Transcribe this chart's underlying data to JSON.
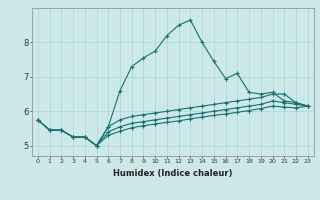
{
  "xlabel": "Humidex (Indice chaleur)",
  "ylabel": "",
  "bg_color": "#cce8e8",
  "line_color": "#1a7070",
  "xlim": [
    -0.5,
    23.5
  ],
  "ylim": [
    4.7,
    9.0
  ],
  "xticks": [
    0,
    1,
    2,
    3,
    4,
    5,
    6,
    7,
    8,
    9,
    10,
    11,
    12,
    13,
    14,
    15,
    16,
    17,
    18,
    19,
    20,
    21,
    22,
    23
  ],
  "yticks": [
    5,
    6,
    7,
    8
  ],
  "grid_color": "#aad4d4",
  "line1_x": [
    0,
    1,
    2,
    3,
    4,
    5,
    6,
    7,
    8,
    9,
    10,
    11,
    12,
    13,
    14,
    15,
    16,
    17,
    18,
    19,
    20,
    21,
    22,
    23
  ],
  "line1_y": [
    5.75,
    5.45,
    5.45,
    5.25,
    5.25,
    5.0,
    5.55,
    6.6,
    7.3,
    7.55,
    7.75,
    8.2,
    8.5,
    8.65,
    8.0,
    7.45,
    6.95,
    7.1,
    6.55,
    6.5,
    6.55,
    6.3,
    6.25,
    6.15
  ],
  "line2_x": [
    0,
    1,
    2,
    3,
    4,
    5,
    6,
    7,
    8,
    9,
    10,
    11,
    12,
    13,
    14,
    15,
    16,
    17,
    18,
    19,
    20,
    21,
    22,
    23
  ],
  "line2_y": [
    5.75,
    5.45,
    5.45,
    5.25,
    5.25,
    5.0,
    5.55,
    5.75,
    5.85,
    5.9,
    5.95,
    6.0,
    6.05,
    6.1,
    6.15,
    6.2,
    6.25,
    6.3,
    6.35,
    6.4,
    6.5,
    6.5,
    6.25,
    6.15
  ],
  "line3_x": [
    0,
    1,
    2,
    3,
    4,
    5,
    6,
    7,
    8,
    9,
    10,
    11,
    12,
    13,
    14,
    15,
    16,
    17,
    18,
    19,
    20,
    21,
    22,
    23
  ],
  "line3_y": [
    5.75,
    5.45,
    5.45,
    5.25,
    5.25,
    5.0,
    5.4,
    5.55,
    5.65,
    5.7,
    5.75,
    5.8,
    5.85,
    5.9,
    5.95,
    6.0,
    6.05,
    6.1,
    6.15,
    6.2,
    6.3,
    6.25,
    6.2,
    6.15
  ],
  "line4_x": [
    0,
    1,
    2,
    3,
    4,
    5,
    6,
    7,
    8,
    9,
    10,
    11,
    12,
    13,
    14,
    15,
    16,
    17,
    18,
    19,
    20,
    21,
    22,
    23
  ],
  "line4_y": [
    5.75,
    5.45,
    5.45,
    5.25,
    5.25,
    5.0,
    5.3,
    5.42,
    5.52,
    5.58,
    5.63,
    5.68,
    5.72,
    5.78,
    5.83,
    5.88,
    5.92,
    5.97,
    6.02,
    6.08,
    6.15,
    6.12,
    6.1,
    6.15
  ]
}
